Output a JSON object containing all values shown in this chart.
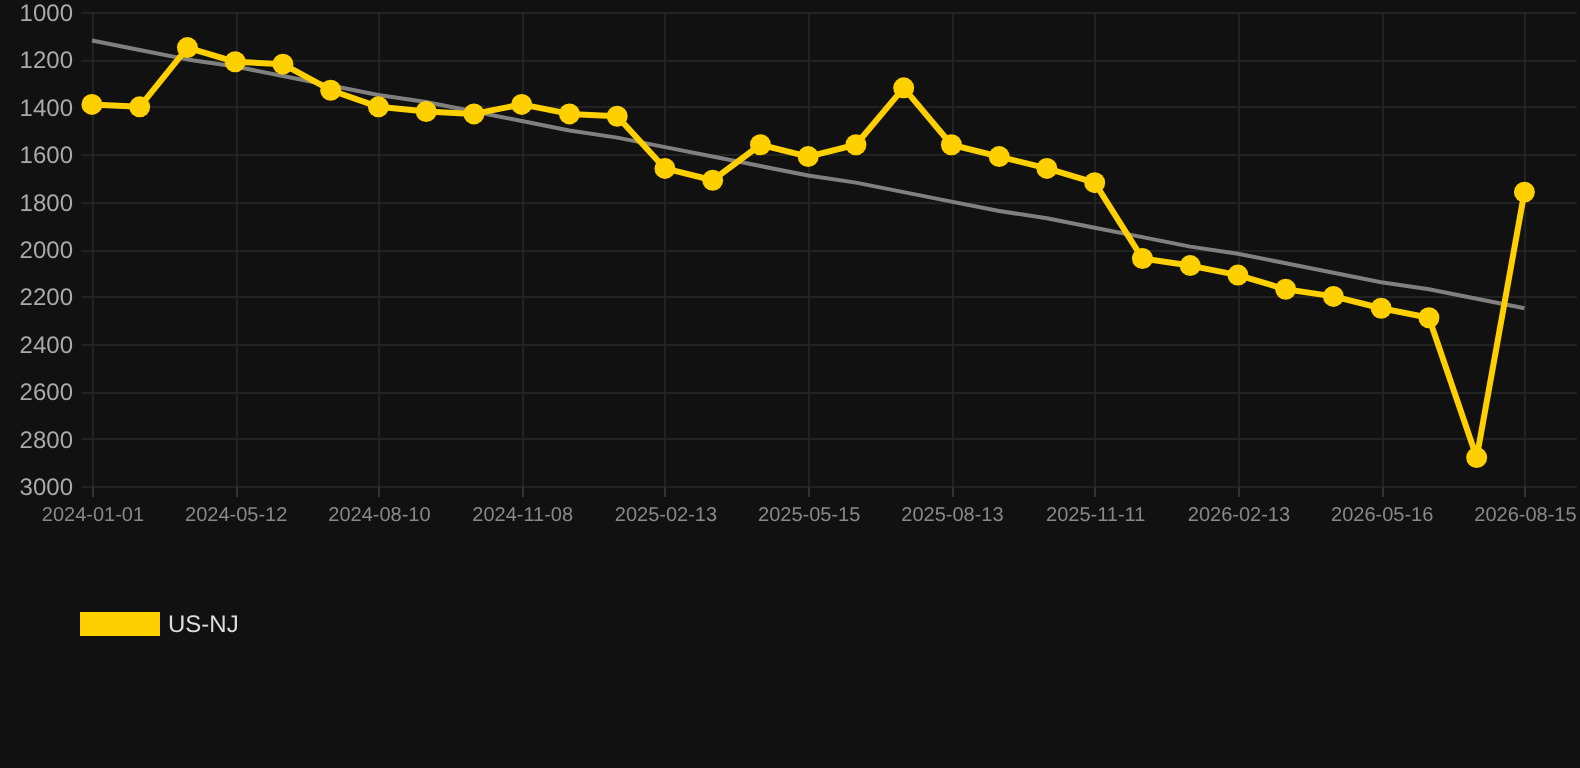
{
  "chart_data": {
    "type": "line",
    "categories": [
      "2024-01-01",
      null,
      null,
      "2024-05-12",
      null,
      null,
      "2024-08-10",
      null,
      null,
      "2024-11-08",
      null,
      null,
      "2025-02-13",
      null,
      null,
      "2025-05-15",
      null,
      null,
      "2025-08-13",
      null,
      null,
      "2025-11-11",
      null,
      null,
      "2026-02-13",
      null,
      null,
      "2026-05-16",
      null,
      null,
      "2026-08-15"
    ],
    "series": [
      {
        "name": "US-NJ",
        "color": "#ffd000",
        "marker": "circle",
        "values": [
          1390,
          1400,
          1150,
          1210,
          1220,
          1330,
          1400,
          1420,
          1430,
          1390,
          1430,
          1440,
          1660,
          1710,
          1560,
          1610,
          1560,
          1320,
          1560,
          1610,
          1660,
          1720,
          2040,
          2070,
          2110,
          2170,
          2200,
          2250,
          2290,
          2880,
          1760
        ]
      },
      {
        "type": "line",
        "color": "#808080",
        "marker": "none",
        "values": [
          1120,
          1160,
          1200,
          1230,
          1270,
          1310,
          1350,
          1380,
          1420,
          1460,
          1500,
          1530,
          1570,
          1610,
          1650,
          1690,
          1720,
          1760,
          1800,
          1840,
          1870,
          1910,
          1950,
          1990,
          2020,
          2060,
          2100,
          2140,
          2170,
          2210,
          2250
        ]
      }
    ],
    "ylim": [
      3000,
      1000
    ],
    "yticks": [
      1000,
      1200,
      1400,
      1600,
      1800,
      2000,
      2200,
      2400,
      2600,
      2800,
      3000
    ],
    "grid": true,
    "legend": "bottom"
  }
}
